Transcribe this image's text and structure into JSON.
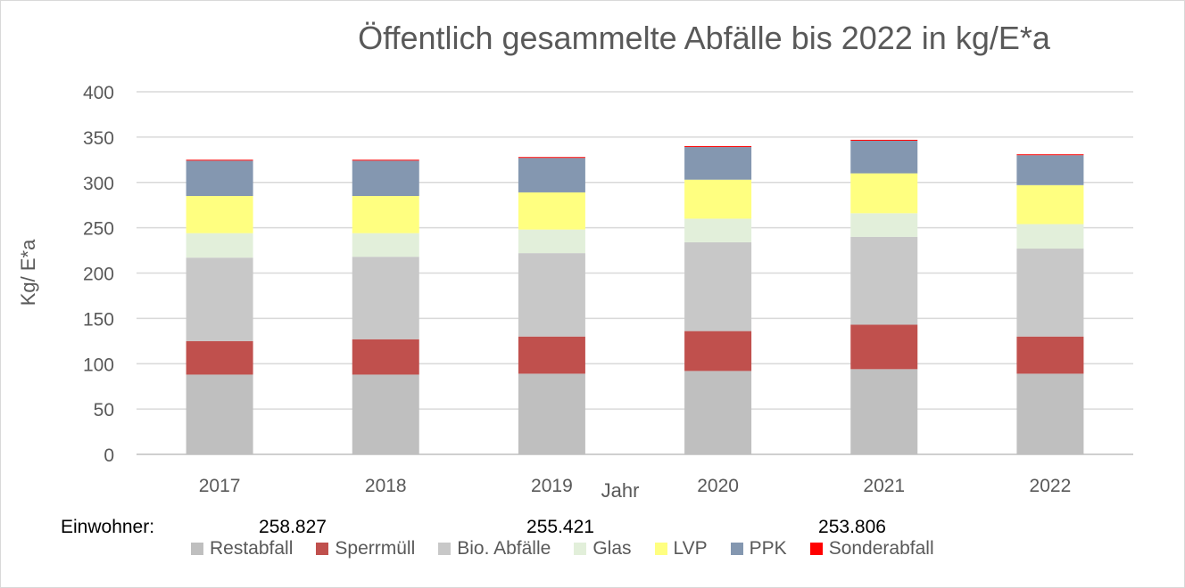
{
  "chart_data": {
    "type": "bar",
    "stacked": true,
    "title": "Öffentlich gesammelte Abfälle bis 2022 in kg/E*a",
    "xlabel": "Jahr",
    "ylabel": "Kg/ E*a",
    "ylim": [
      0,
      400
    ],
    "yticks": [
      "0",
      "50",
      "100",
      "150",
      "200",
      "250",
      "300",
      "350",
      "400"
    ],
    "grid": true,
    "legend_position": "bottom",
    "categories": [
      "2017",
      "2018",
      "2019",
      "2020",
      "2021",
      "2022"
    ],
    "series": [
      {
        "name": "Restabfall",
        "color": "#bfbfbf",
        "values": [
          88,
          88,
          89,
          92,
          94,
          89
        ]
      },
      {
        "name": "Sperrmüll",
        "color": "#c0504d",
        "values": [
          37,
          39,
          41,
          44,
          49,
          41
        ]
      },
      {
        "name": "Bio. Abfälle",
        "color": "#c8c8c8",
        "values": [
          92,
          91,
          92,
          98,
          97,
          97
        ]
      },
      {
        "name": "Glas",
        "color": "#e2efda",
        "values": [
          27,
          26,
          26,
          26,
          26,
          27
        ]
      },
      {
        "name": "LVP",
        "color": "#ffff80",
        "values": [
          41,
          41,
          41,
          43,
          44,
          43
        ]
      },
      {
        "name": "PPK",
        "color": "#8497b0",
        "values": [
          39,
          39,
          38,
          36,
          36,
          33
        ]
      },
      {
        "name": "Sonderabfall",
        "color": "#ff0000",
        "values": [
          1,
          1,
          1,
          1,
          1,
          1
        ]
      }
    ]
  },
  "population": {
    "label": "Einwohner:",
    "values": [
      "258.827",
      "255.421",
      "253.806"
    ]
  }
}
